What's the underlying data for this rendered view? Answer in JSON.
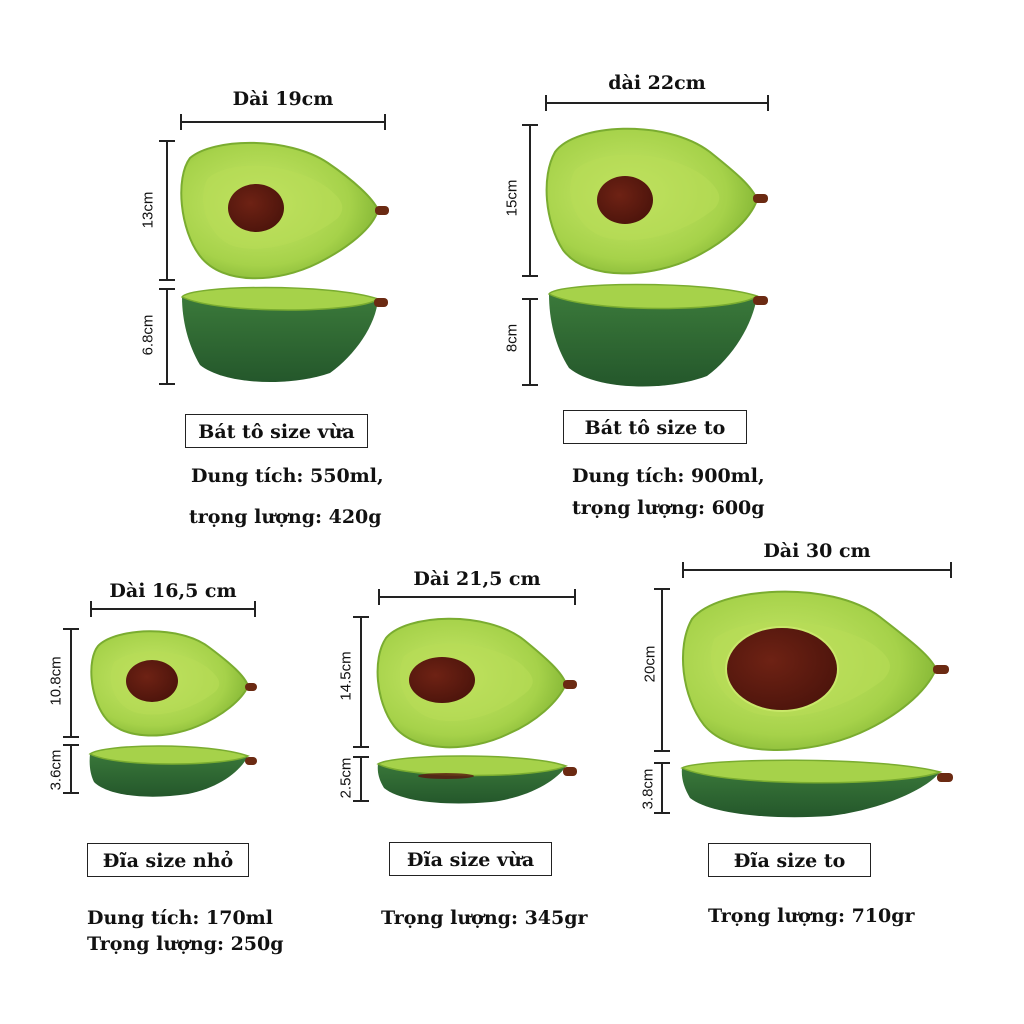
{
  "colors": {
    "avocado_light": "#b8df5a",
    "avocado_mid": "#8fc43b",
    "avocado_dark": "#2f6b34",
    "seed": "#5a1810",
    "stem": "#6b2a12"
  },
  "products": [
    {
      "length_label": "Dài 19cm",
      "width_label": "13cm",
      "height_label": "6.8cm",
      "name": "Bát tô size vừa",
      "info": [
        "Dung tích: 550ml,",
        "trọng lượng: 420g"
      ]
    },
    {
      "length_label": "dài 22cm",
      "width_label": "15cm",
      "height_label": "8cm",
      "name": "Bát tô size to",
      "info": [
        "Dung tích: 900ml,",
        "trọng lượng: 600g"
      ]
    },
    {
      "length_label": "Dài 16,5 cm",
      "width_label": "10.8cm",
      "height_label": "3.6cm",
      "name": "Đĩa size nhỏ",
      "info": [
        "Dung tích: 170ml",
        "Trọng lượng: 250g"
      ]
    },
    {
      "length_label": "Dài 21,5 cm",
      "width_label": "14.5cm",
      "height_label": "2.5cm",
      "name": "Đĩa size vừa",
      "info": [
        "Trọng lượng: 345gr"
      ]
    },
    {
      "length_label": "Dài 30 cm",
      "width_label": "20cm",
      "height_label": "3.8cm",
      "name": "Đĩa size to",
      "info": [
        "Trọng lượng: 710gr"
      ]
    }
  ]
}
